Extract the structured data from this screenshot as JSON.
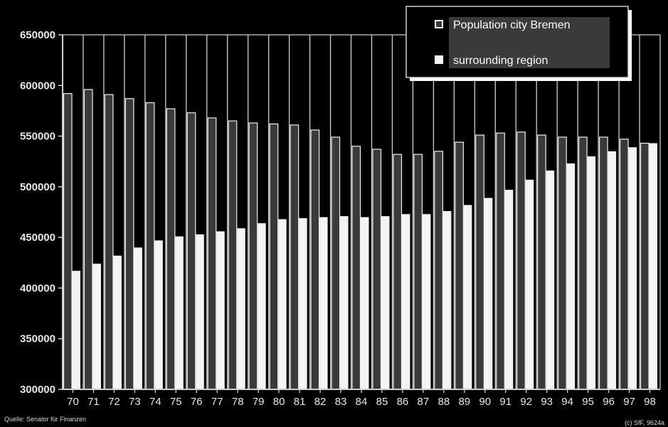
{
  "chart_data": {
    "type": "bar",
    "title": "",
    "xlabel": "",
    "ylabel": "",
    "ylim": [
      300000,
      650000
    ],
    "yticks": [
      300000,
      350000,
      400000,
      450000,
      500000,
      550000,
      600000,
      650000
    ],
    "ytick_labels": [
      "300000",
      "350000",
      "400000",
      "450000",
      "500000",
      "550000",
      "600000",
      "650000"
    ],
    "grid": "vertical lines between categories",
    "legend_position": "top-right",
    "categories": [
      "70",
      "71",
      "72",
      "73",
      "74",
      "75",
      "76",
      "77",
      "78",
      "79",
      "80",
      "81",
      "82",
      "83",
      "84",
      "85",
      "86",
      "87",
      "88",
      "89",
      "90",
      "91",
      "92",
      "93",
      "94",
      "95",
      "96",
      "97",
      "98"
    ],
    "series": [
      {
        "name": "Population city Bremen",
        "color": "#3a3a3a",
        "values": [
          592000,
          596000,
          591000,
          587000,
          583000,
          577000,
          573000,
          568000,
          565000,
          563000,
          562000,
          561000,
          556000,
          549000,
          540000,
          537000,
          532000,
          532000,
          535000,
          544000,
          551000,
          553000,
          554000,
          551000,
          549000,
          549000,
          549000,
          547000,
          543000
        ]
      },
      {
        "name": "surrounding region",
        "color": "#f4f4f4",
        "values": [
          417000,
          424000,
          432000,
          440000,
          447000,
          451000,
          453000,
          456000,
          459000,
          464000,
          468000,
          469000,
          470000,
          471000,
          470000,
          471000,
          473000,
          473000,
          476000,
          482000,
          489000,
          497000,
          507000,
          516000,
          523000,
          530000,
          535000,
          539000,
          543000
        ]
      }
    ]
  },
  "source_note": "Quelle: Senator für Finanzen",
  "copyright_note": "(c) SfF, 9624a"
}
